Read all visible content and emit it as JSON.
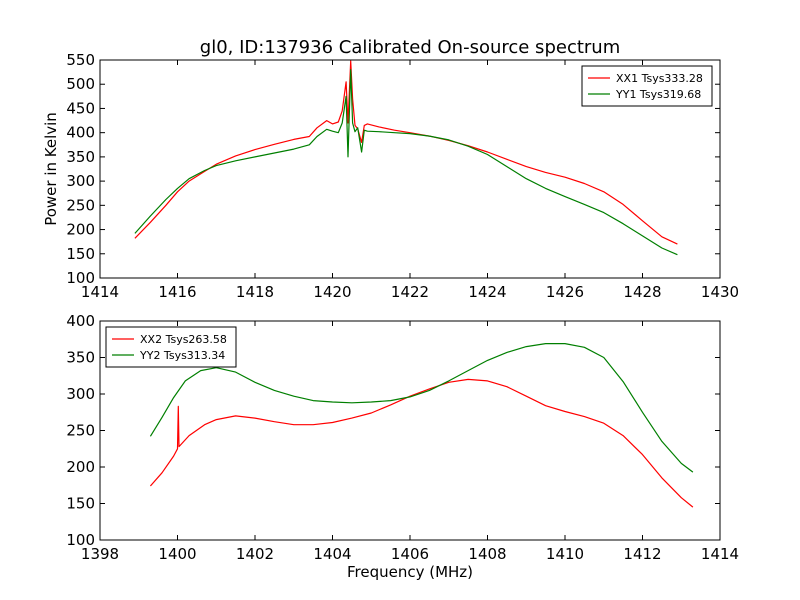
{
  "figure": {
    "title": "gl0, ID:137936 Calibrated On-source spectrum",
    "ylabel": "Power in Kelvin",
    "xlabel": "Frequency (MHz)"
  },
  "chart_data": [
    {
      "type": "line",
      "title": "gl0, ID:137936 Calibrated On-source spectrum",
      "xlabel": "",
      "ylabel": "Power in Kelvin",
      "xlim": [
        1414,
        1430
      ],
      "ylim": [
        100,
        550
      ],
      "xticks": [
        1414,
        1416,
        1418,
        1420,
        1422,
        1424,
        1426,
        1428,
        1430
      ],
      "yticks": [
        100,
        150,
        200,
        250,
        300,
        350,
        400,
        450,
        500,
        550
      ],
      "grid": false,
      "legend": "top-right",
      "series": [
        {
          "name": "XX1 Tsys333.28",
          "color": "#ff0000",
          "x": [
            1414.9,
            1415.3,
            1415.7,
            1416.0,
            1416.3,
            1416.7,
            1417.0,
            1417.5,
            1418.0,
            1418.5,
            1419.0,
            1419.4,
            1419.6,
            1419.85,
            1420.0,
            1420.15,
            1420.25,
            1420.35,
            1420.4,
            1420.47,
            1420.52,
            1420.58,
            1420.65,
            1420.75,
            1420.82,
            1420.9,
            1421.2,
            1421.6,
            1422.0,
            1422.5,
            1423.0,
            1423.5,
            1424.0,
            1424.5,
            1425.0,
            1425.5,
            1426.0,
            1426.5,
            1427.0,
            1427.5,
            1428.0,
            1428.5,
            1428.9
          ],
          "y": [
            182,
            215,
            250,
            278,
            300,
            320,
            335,
            352,
            365,
            376,
            386,
            392,
            410,
            425,
            418,
            422,
            445,
            505,
            420,
            548,
            470,
            415,
            408,
            380,
            415,
            418,
            412,
            405,
            400,
            393,
            384,
            373,
            360,
            345,
            330,
            318,
            308,
            295,
            278,
            252,
            218,
            185,
            170
          ]
        },
        {
          "name": "YY1 Tsys319.68",
          "color": "#007f00",
          "x": [
            1414.9,
            1415.3,
            1415.7,
            1416.0,
            1416.3,
            1416.7,
            1417.0,
            1417.5,
            1418.0,
            1418.5,
            1419.0,
            1419.4,
            1419.6,
            1419.85,
            1420.0,
            1420.15,
            1420.25,
            1420.35,
            1420.4,
            1420.47,
            1420.52,
            1420.58,
            1420.65,
            1420.75,
            1420.82,
            1420.9,
            1421.2,
            1421.6,
            1422.0,
            1422.5,
            1423.0,
            1423.5,
            1424.0,
            1424.5,
            1425.0,
            1425.5,
            1426.0,
            1426.5,
            1427.0,
            1427.5,
            1428.0,
            1428.5,
            1428.9
          ],
          "y": [
            192,
            228,
            262,
            285,
            305,
            322,
            332,
            342,
            350,
            358,
            366,
            375,
            392,
            407,
            403,
            400,
            420,
            475,
            350,
            530,
            420,
            402,
            410,
            360,
            405,
            403,
            402,
            400,
            398,
            393,
            385,
            372,
            355,
            330,
            305,
            285,
            268,
            252,
            235,
            212,
            187,
            162,
            148
          ]
        }
      ]
    },
    {
      "type": "line",
      "title": "",
      "xlabel": "Frequency (MHz)",
      "ylabel": "",
      "xlim": [
        1398,
        1414
      ],
      "ylim": [
        100,
        400
      ],
      "xticks": [
        1398,
        1400,
        1402,
        1404,
        1406,
        1408,
        1410,
        1412,
        1414
      ],
      "yticks": [
        100,
        150,
        200,
        250,
        300,
        350,
        400
      ],
      "grid": false,
      "legend": "top-left",
      "series": [
        {
          "name": "XX2 Tsys263.58",
          "color": "#ff0000",
          "x": [
            1399.3,
            1399.6,
            1399.9,
            1400.0,
            1400.02,
            1400.04,
            1400.3,
            1400.7,
            1401.0,
            1401.5,
            1402.0,
            1402.5,
            1403.0,
            1403.5,
            1404.0,
            1404.5,
            1405.0,
            1405.5,
            1406.0,
            1406.5,
            1407.0,
            1407.5,
            1408.0,
            1408.5,
            1409.0,
            1409.5,
            1410.0,
            1410.5,
            1411.0,
            1411.5,
            1412.0,
            1412.5,
            1413.0,
            1413.3
          ],
          "y": [
            174,
            192,
            215,
            225,
            283,
            228,
            243,
            258,
            265,
            270,
            267,
            262,
            258,
            258,
            261,
            267,
            274,
            285,
            297,
            307,
            316,
            320,
            318,
            310,
            297,
            284,
            276,
            269,
            260,
            243,
            217,
            185,
            158,
            145
          ]
        },
        {
          "name": "YY2 Tsys313.34",
          "color": "#007f00",
          "x": [
            1399.3,
            1399.6,
            1399.9,
            1400.2,
            1400.6,
            1401.0,
            1401.5,
            1402.0,
            1402.5,
            1403.0,
            1403.5,
            1404.0,
            1404.5,
            1405.0,
            1405.5,
            1406.0,
            1406.5,
            1407.0,
            1407.5,
            1408.0,
            1408.5,
            1409.0,
            1409.5,
            1410.0,
            1410.5,
            1411.0,
            1411.5,
            1412.0,
            1412.5,
            1413.0,
            1413.3
          ],
          "y": [
            242,
            268,
            295,
            318,
            332,
            336,
            330,
            316,
            305,
            297,
            291,
            289,
            288,
            289,
            291,
            296,
            305,
            318,
            332,
            346,
            357,
            365,
            369,
            369,
            364,
            350,
            317,
            275,
            235,
            205,
            193
          ]
        }
      ]
    }
  ]
}
